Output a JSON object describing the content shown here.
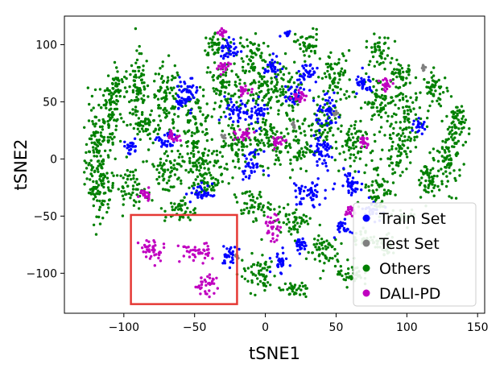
{
  "chart_data": {
    "type": "scatter",
    "xlabel": "tSNE1",
    "ylabel": "tSNE2",
    "xlim": [
      -142,
      155
    ],
    "ylim": [
      -135,
      125
    ],
    "xticks": [
      -100,
      -50,
      0,
      50,
      100,
      150
    ],
    "yticks": [
      -100,
      -50,
      0,
      50,
      100
    ],
    "xtick_labels": [
      "−100",
      "−50",
      "0",
      "50",
      "100",
      "150"
    ],
    "ytick_labels": [
      "−100",
      "−50",
      "0",
      "50",
      "100"
    ],
    "legend_position": "lower-right",
    "highlight_box": {
      "x0": -95,
      "x1": -20,
      "y0": -127,
      "y1": -49,
      "color": "#e53935"
    },
    "series": [
      {
        "name": "Train Set",
        "color": "#0000ff",
        "clusters": [
          [
            -25,
            95,
            6,
            10
          ],
          [
            -55,
            60,
            7,
            10
          ],
          [
            -20,
            40,
            8,
            12
          ],
          [
            30,
            75,
            7,
            10
          ],
          [
            45,
            40,
            8,
            12
          ],
          [
            70,
            65,
            6,
            8
          ],
          [
            40,
            5,
            8,
            14
          ],
          [
            30,
            -30,
            10,
            12
          ],
          [
            60,
            -20,
            8,
            10
          ],
          [
            75,
            -45,
            6,
            8
          ],
          [
            -10,
            -5,
            7,
            10
          ],
          [
            -45,
            -30,
            7,
            8
          ],
          [
            -25,
            -85,
            5,
            8
          ],
          [
            10,
            -90,
            5,
            8
          ],
          [
            25,
            -75,
            5,
            6
          ],
          [
            -70,
            15,
            6,
            8
          ],
          [
            -60,
            50,
            5,
            6
          ],
          [
            -95,
            10,
            5,
            6
          ],
          [
            20,
            55,
            6,
            8
          ],
          [
            55,
            -60,
            5,
            6
          ],
          [
            110,
            28,
            4,
            6
          ],
          [
            15,
            110,
            3,
            4
          ],
          [
            -5,
            40,
            6,
            10
          ],
          [
            5,
            80,
            5,
            8
          ]
        ]
      },
      {
        "name": "Test Set",
        "color": "#808080",
        "clusters": [
          [
            112,
            80,
            1.2,
            3
          ],
          [
            20,
            30,
            1.5,
            2
          ],
          [
            50,
            40,
            1.5,
            2
          ],
          [
            -30,
            20,
            1.5,
            2
          ],
          [
            -20,
            -85,
            1.5,
            2
          ]
        ]
      },
      {
        "name": "Others",
        "color": "#008000",
        "clusters": [
          [
            -120,
            0,
            7,
            40
          ],
          [
            -110,
            40,
            8,
            35
          ],
          [
            -105,
            65,
            6,
            12
          ],
          [
            -115,
            -25,
            8,
            22
          ],
          [
            -90,
            60,
            7,
            30
          ],
          [
            -70,
            50,
            10,
            30
          ],
          [
            -50,
            30,
            12,
            25
          ],
          [
            -30,
            60,
            12,
            25
          ],
          [
            -35,
            100,
            8,
            10
          ],
          [
            -10,
            90,
            10,
            20
          ],
          [
            10,
            60,
            12,
            25
          ],
          [
            30,
            100,
            8,
            12
          ],
          [
            50,
            70,
            10,
            22
          ],
          [
            80,
            95,
            8,
            12
          ],
          [
            80,
            50,
            10,
            20
          ],
          [
            100,
            40,
            10,
            20
          ],
          [
            120,
            60,
            8,
            15
          ],
          [
            135,
            30,
            6,
            20
          ],
          [
            130,
            0,
            8,
            25
          ],
          [
            115,
            -20,
            8,
            18
          ],
          [
            95,
            10,
            10,
            20
          ],
          [
            80,
            -25,
            10,
            20
          ],
          [
            60,
            10,
            10,
            20
          ],
          [
            40,
            30,
            12,
            20
          ],
          [
            20,
            10,
            12,
            20
          ],
          [
            0,
            20,
            12,
            20
          ],
          [
            -20,
            10,
            12,
            20
          ],
          [
            -45,
            0,
            12,
            20
          ],
          [
            -70,
            -10,
            12,
            20
          ],
          [
            -95,
            -25,
            10,
            15
          ],
          [
            -60,
            -45,
            10,
            10
          ],
          [
            -10,
            -40,
            12,
            12
          ],
          [
            20,
            -55,
            12,
            12
          ],
          [
            40,
            -80,
            10,
            15
          ],
          [
            -5,
            -100,
            12,
            15
          ],
          [
            20,
            -115,
            10,
            6
          ],
          [
            60,
            -100,
            8,
            10
          ],
          [
            70,
            -70,
            8,
            8
          ],
          [
            85,
            -75,
            6,
            8
          ],
          [
            100,
            -50,
            6,
            6
          ],
          [
            -40,
            -20,
            10,
            10
          ],
          [
            -85,
            30,
            8,
            12
          ],
          [
            -5,
            60,
            10,
            15
          ],
          [
            95,
            75,
            8,
            12
          ]
        ]
      },
      {
        "name": "DALI-PD",
        "color": "#c000c0",
        "clusters": [
          [
            -80,
            -80,
            8,
            10
          ],
          [
            -50,
            -82,
            10,
            8
          ],
          [
            -42,
            -110,
            8,
            8
          ],
          [
            -30,
            110,
            3,
            3
          ],
          [
            -15,
            60,
            4,
            4
          ],
          [
            -15,
            20,
            6,
            5
          ],
          [
            5,
            -60,
            5,
            10
          ],
          [
            -85,
            -30,
            5,
            5
          ],
          [
            -65,
            20,
            4,
            5
          ],
          [
            25,
            55,
            5,
            5
          ],
          [
            85,
            65,
            4,
            5
          ],
          [
            10,
            15,
            5,
            5
          ],
          [
            60,
            -45,
            4,
            4
          ],
          [
            -30,
            80,
            4,
            4
          ],
          [
            70,
            15,
            4,
            4
          ]
        ]
      }
    ]
  }
}
